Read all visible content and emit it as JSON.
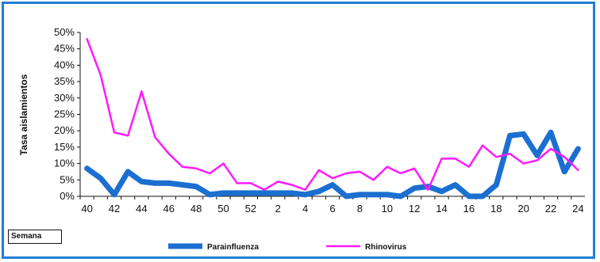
{
  "chart_data": {
    "type": "line",
    "title": "",
    "ylabel": "Tasa aislamientos",
    "xlabel": "Semana",
    "ylim": [
      0,
      50
    ],
    "y_ticks": [
      "0%",
      "5%",
      "10%",
      "15%",
      "20%",
      "25%",
      "30%",
      "35%",
      "40%",
      "45%",
      "50%"
    ],
    "x": [
      "40",
      "41",
      "42",
      "43",
      "44",
      "45",
      "46",
      "47",
      "48",
      "49",
      "50",
      "51",
      "52",
      "1",
      "2",
      "3",
      "4",
      "5",
      "6",
      "7",
      "8",
      "9",
      "10",
      "11",
      "12",
      "13",
      "14",
      "15",
      "16",
      "17",
      "18",
      "19",
      "20",
      "21",
      "22",
      "23",
      "24"
    ],
    "x_tick_labels": [
      "40",
      "42",
      "44",
      "46",
      "48",
      "50",
      "52",
      "2",
      "4",
      "6",
      "8",
      "10",
      "12",
      "14",
      "16",
      "18",
      "20",
      "22",
      "24"
    ],
    "legend_position": "bottom",
    "grid": false,
    "series": [
      {
        "name": "Parainfluenza",
        "color": "#1b6fd0",
        "values": [
          8.5,
          5.5,
          0.5,
          7.5,
          4.5,
          4,
          4,
          3.5,
          3,
          0.5,
          1,
          1,
          1,
          1,
          1,
          1,
          0.5,
          1.5,
          3.5,
          0,
          0.5,
          0.5,
          0.5,
          0,
          2.5,
          3,
          1.5,
          3.5,
          0,
          0,
          3.5,
          18.5,
          19,
          12.5,
          19.5,
          7.5,
          14.5
        ]
      },
      {
        "name": "Rhinovirus",
        "color": "#ff1aff",
        "values": [
          48,
          37,
          19.5,
          18.5,
          32,
          18,
          13,
          9,
          8.5,
          7,
          10,
          4,
          4,
          2,
          4.5,
          3.5,
          2,
          8,
          5.5,
          7,
          7.5,
          5,
          9,
          7,
          8.5,
          2,
          11.5,
          11.5,
          9,
          15.5,
          12,
          13,
          10,
          11,
          14.5,
          12,
          8
        ]
      }
    ]
  }
}
